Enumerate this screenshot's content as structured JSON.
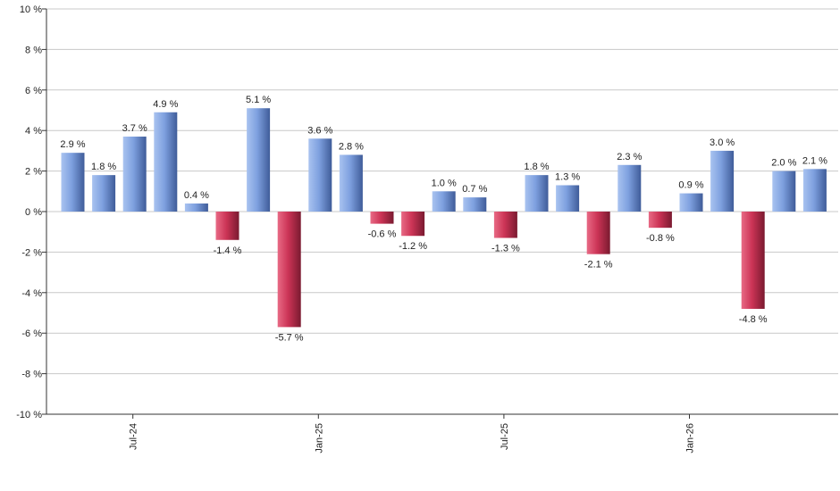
{
  "chart_data": {
    "type": "bar",
    "title": "",
    "xlabel": "",
    "ylabel": "",
    "ylim": [
      -10,
      10
    ],
    "y_ticks": [
      10,
      8,
      6,
      4,
      2,
      0,
      -2,
      -4,
      -6,
      -8,
      -10
    ],
    "y_tick_labels": [
      "10 %",
      "8 %",
      "6 %",
      "4 %",
      "2 %",
      "0 %",
      "-2 %",
      "-4 %",
      "-6 %",
      "-8 %",
      "-10 %"
    ],
    "grid": true,
    "legend": "none",
    "x_tick_labels": [
      {
        "label": "Jul-24",
        "index": 2
      },
      {
        "label": "Jan-25",
        "index": 8
      },
      {
        "label": "Jul-25",
        "index": 14
      },
      {
        "label": "Jan-26",
        "index": 20
      }
    ],
    "values": [
      2.9,
      1.8,
      3.7,
      4.9,
      0.4,
      -1.4,
      5.1,
      -5.7,
      3.6,
      2.8,
      -0.6,
      -1.2,
      1.0,
      0.7,
      -1.3,
      1.8,
      1.3,
      -2.1,
      2.3,
      -0.8,
      0.9,
      3.0,
      -4.8,
      2.0,
      2.1
    ],
    "value_labels": [
      "2.9 %",
      "1.8 %",
      "3.7 %",
      "4.9 %",
      "0.4 %",
      "-1.4 %",
      "5.1 %",
      "-5.7 %",
      "3.6 %",
      "2.8 %",
      "-0.6 %",
      "-1.2 %",
      "1.0 %",
      "0.7 %",
      "-1.3 %",
      "1.8 %",
      "1.3 %",
      "-2.1 %",
      "2.3 %",
      "-0.8 %",
      "0.9 %",
      "3.0 %",
      "-4.8 %",
      "2.0 %",
      "2.1 %"
    ],
    "colors": {
      "positive": "#6f93d6",
      "negative": "#c23050",
      "grid": "#c8c8c8",
      "axis": "#333333"
    }
  }
}
